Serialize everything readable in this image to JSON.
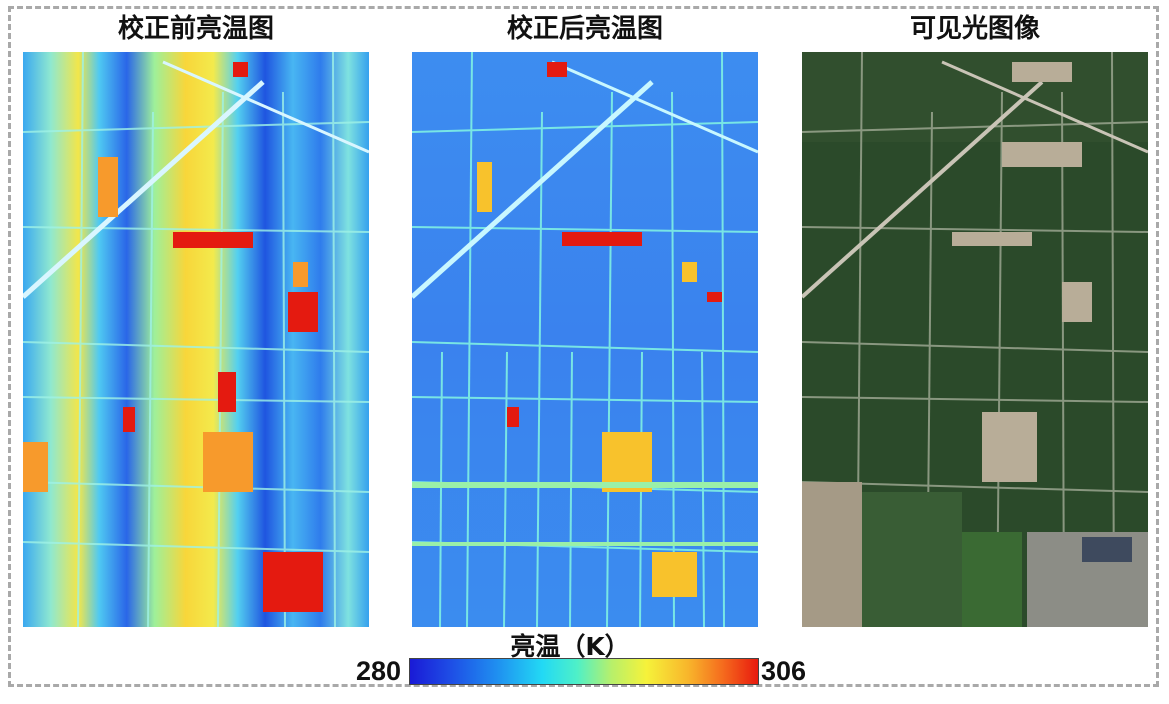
{
  "panels": [
    {
      "title": "校正前亮温图",
      "image": "thermal image before correction"
    },
    {
      "title": "校正后亮温图",
      "image": "thermal image after correction"
    },
    {
      "title": "可见光图像",
      "image": "visible light satellite image"
    }
  ],
  "colorbar": {
    "label": "亮温（K）",
    "min": "280",
    "max": "306"
  },
  "colors": {
    "cold": "#1a1ad6",
    "mid": "#22d9f5",
    "warm": "#f6f23a",
    "hot": "#e81a0e",
    "vegetation": "#2b4a2a"
  }
}
